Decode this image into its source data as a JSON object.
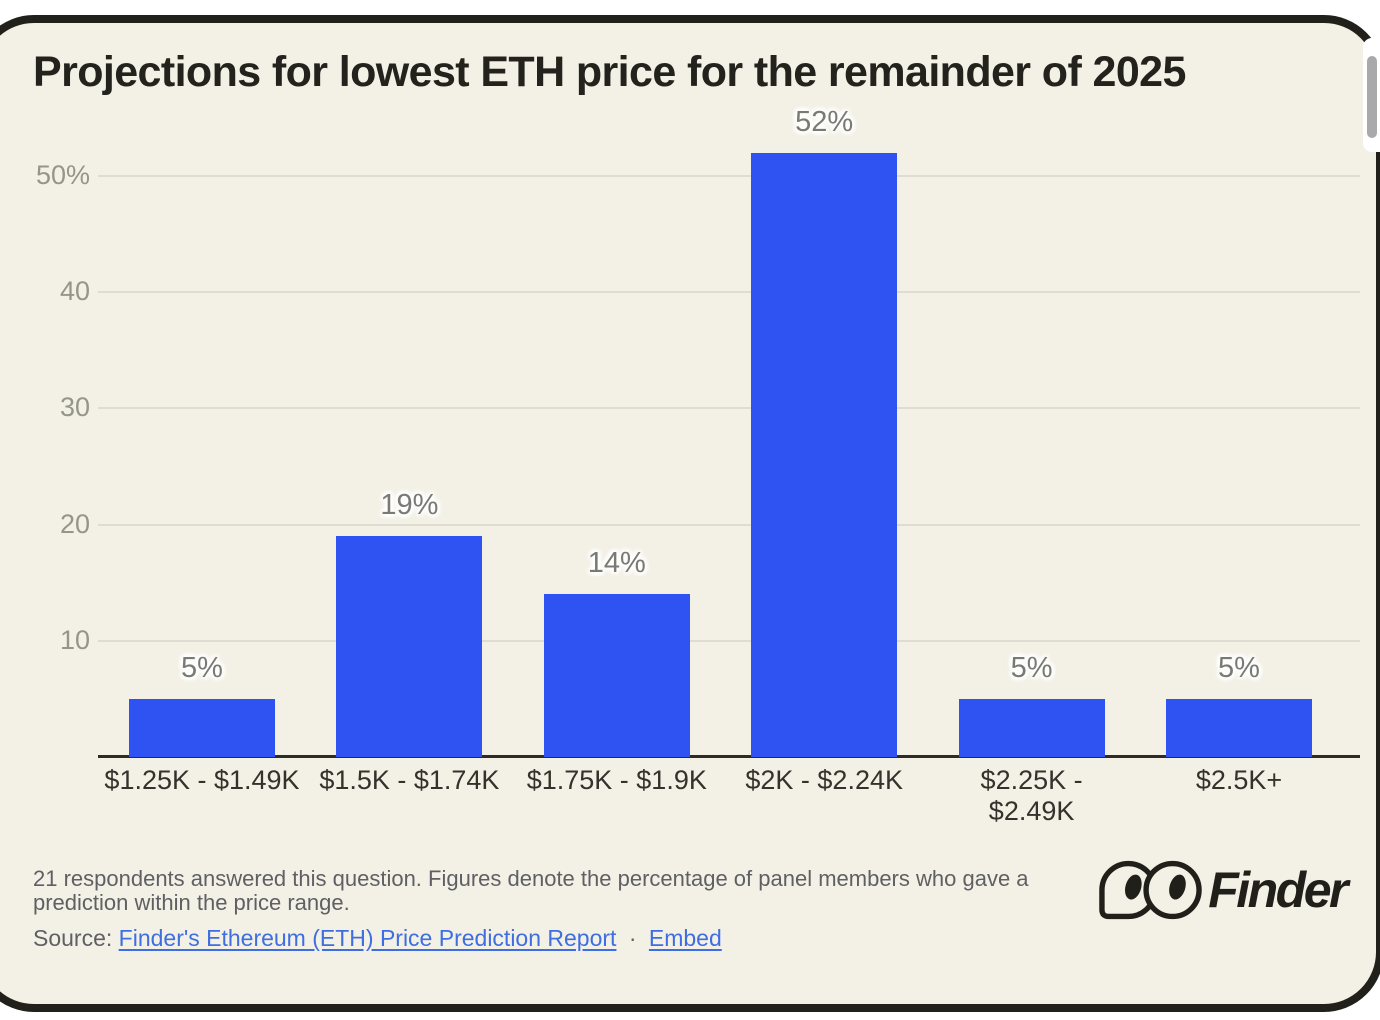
{
  "title": "Projections for lowest ETH price for the remainder of 2025",
  "chart_data": {
    "type": "bar",
    "title": "Projections for lowest ETH price for the remainder of 2025",
    "categories": [
      "$1.25K - $1.49K",
      "$1.5K - $1.74K",
      "$1.75K - $1.9K",
      "$2K - $2.24K",
      "$2.25K - $2.49K",
      "$2.5K+"
    ],
    "values": [
      5,
      19,
      14,
      52,
      5,
      5
    ],
    "value_labels": [
      "5%",
      "19%",
      "14%",
      "52%",
      "5%",
      "5%"
    ],
    "x_tick_lines": [
      [
        "$1.25K - $1.49K"
      ],
      [
        "$1.5K - $1.74K"
      ],
      [
        "$1.75K - $1.9K"
      ],
      [
        "$2K - $2.24K"
      ],
      [
        "$2.25K -",
        "$2.49K"
      ],
      [
        "$2.5K+"
      ]
    ],
    "yticks": [
      {
        "value": 50,
        "label": "50%"
      },
      {
        "value": 40,
        "label": "40"
      },
      {
        "value": 30,
        "label": "30"
      },
      {
        "value": 20,
        "label": "20"
      },
      {
        "value": 10,
        "label": "10"
      }
    ],
    "ylim": [
      0,
      52
    ],
    "xlabel": "",
    "ylabel": "",
    "grid": true,
    "legend": false,
    "bar_color": "#2f52f2"
  },
  "footnote": "21 respondents answered this question. Figures denote the percentage of panel members who gave a prediction within the price range.",
  "source": {
    "prefix": "Source:",
    "report_link": "Finder's Ethereum (ETH) Price Prediction Report",
    "separator": "·",
    "embed_link": "Embed"
  },
  "logo": {
    "brand": "Finder"
  },
  "colors": {
    "card_bg": "#f3f1e6",
    "card_border": "#21201b",
    "bar": "#2f52f2",
    "grid": "#dfddd1",
    "axis": "#2c2b26",
    "tick": "#95958c",
    "value_label": "#7a7a75",
    "cat_label": "#33322c",
    "title": "#23221c",
    "body_text": "#5f5f64",
    "link": "#3f6ee2",
    "logo": "#201f19",
    "scrollbar_thumb": "#a9a9a9"
  }
}
